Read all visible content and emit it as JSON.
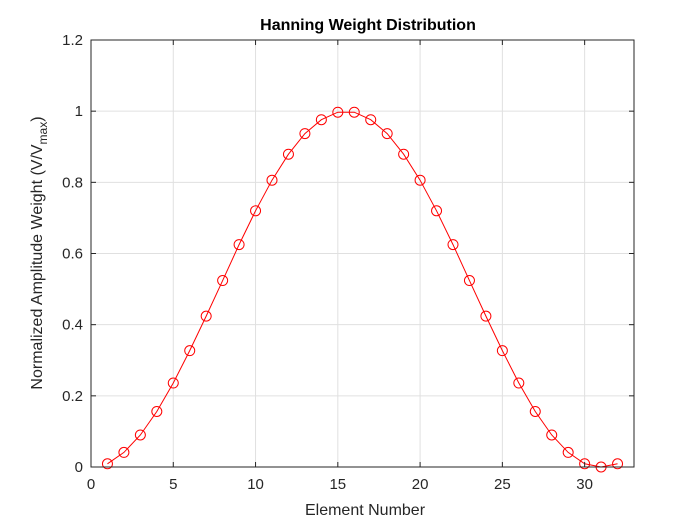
{
  "chart_data": {
    "type": "line",
    "title": "Hanning Weight Distribution",
    "xlabel": "Element Number",
    "ylabel": {
      "main": "Normalized Amplitude Weight (V/V",
      "subscript": "max",
      "close": ")"
    },
    "xlim": [
      0,
      33
    ],
    "ylim": [
      0,
      1.2
    ],
    "xticks": [
      "0",
      "5",
      "10",
      "15",
      "20",
      "25",
      "30"
    ],
    "yticks": [
      "0",
      "0.2",
      "0.4",
      "0.6",
      "0.8",
      "1",
      "1.2"
    ],
    "grid": true,
    "line_color": "#ff0000",
    "marker": "circle",
    "series": [
      {
        "x": [
          1,
          2,
          3,
          4,
          5,
          6,
          7,
          8,
          9,
          10,
          11,
          12,
          13,
          14,
          15,
          16,
          17,
          18,
          19,
          20,
          21,
          22,
          23,
          24,
          25,
          26,
          27,
          28,
          29,
          30,
          31,
          32
        ],
        "values": [
          0.009,
          0.041,
          0.09,
          0.156,
          0.236,
          0.327,
          0.424,
          0.524,
          0.625,
          0.72,
          0.806,
          0.879,
          0.937,
          0.976,
          0.997,
          0.997,
          0.976,
          0.937,
          0.879,
          0.806,
          0.72,
          0.625,
          0.524,
          0.424,
          0.327,
          0.236,
          0.156,
          0.09,
          0.041,
          0.009,
          0.0,
          0.009
        ]
      }
    ]
  }
}
